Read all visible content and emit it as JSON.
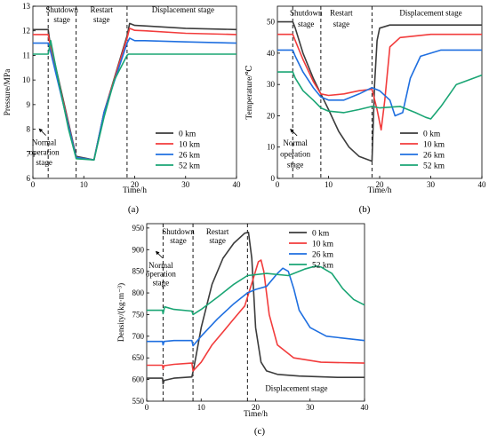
{
  "colors": {
    "0 km": "#3c3c3c",
    "10 km": "#f23c3c",
    "26 km": "#1f6fe0",
    "52 km": "#1aa574"
  },
  "chart_data": [
    {
      "type": "line",
      "panel_label": "(a)",
      "xlabel": "Time/h",
      "ylabel": "Pressure/MPa",
      "xlim": [
        0,
        40
      ],
      "ylim": [
        6,
        13
      ],
      "xticks": [
        0,
        10,
        20,
        30,
        40
      ],
      "yticks": [
        6,
        7,
        8,
        9,
        10,
        11,
        12,
        13
      ],
      "grid": false,
      "legend_position": "bottom-right",
      "vlines": [
        3,
        8.5,
        18.5
      ],
      "annotations": [
        {
          "text": "Shutdown",
          "x": 5.7,
          "y": 12.75
        },
        {
          "text": "stage",
          "x": 5.7,
          "y": 12.35
        },
        {
          "text": "Restart",
          "x": 13.5,
          "y": 12.75
        },
        {
          "text": "stage",
          "x": 13.5,
          "y": 12.35
        },
        {
          "text": "Displacement stage",
          "x": 29.5,
          "y": 12.75
        },
        {
          "text": "Normal",
          "x": 2.2,
          "y": 7.35
        },
        {
          "text": "operation",
          "x": 2.2,
          "y": 6.95
        },
        {
          "text": "stage",
          "x": 2.2,
          "y": 6.55
        }
      ],
      "series": [
        {
          "name": "0 km",
          "x": [
            0,
            3,
            3.3,
            8.5,
            12,
            14,
            18.5,
            19,
            20,
            22,
            30,
            40
          ],
          "y": [
            12.05,
            12.05,
            11.6,
            6.9,
            6.75,
            8.7,
            11.8,
            12.3,
            12.22,
            12.2,
            12.1,
            12.05
          ]
        },
        {
          "name": "10 km",
          "x": [
            0,
            3,
            3.3,
            8.5,
            12,
            14,
            18.5,
            19,
            20,
            22,
            30,
            40
          ],
          "y": [
            11.85,
            11.85,
            11.5,
            6.85,
            6.75,
            8.7,
            11.7,
            12.1,
            12.02,
            12.0,
            11.9,
            11.85
          ]
        },
        {
          "name": "26 km",
          "x": [
            0,
            3,
            3.3,
            8.5,
            12,
            14,
            18.5,
            19,
            20,
            22,
            30,
            40
          ],
          "y": [
            11.5,
            11.5,
            11.3,
            6.85,
            6.75,
            8.7,
            11.5,
            11.7,
            11.6,
            11.6,
            11.55,
            11.5
          ]
        },
        {
          "name": "52 km",
          "x": [
            0,
            3,
            3.5,
            5,
            7,
            8.5,
            12,
            14,
            16,
            18.5,
            18.8,
            40
          ],
          "y": [
            11.05,
            11.05,
            11.6,
            10.0,
            8.0,
            6.8,
            6.75,
            8.5,
            10.0,
            11.0,
            11.05,
            11.05
          ]
        }
      ]
    },
    {
      "type": "line",
      "panel_label": "(b)",
      "xlabel": "Time/h",
      "ylabel": "Temperature/℃",
      "xlim": [
        0,
        40
      ],
      "ylim": [
        0,
        55
      ],
      "xticks": [
        0,
        10,
        20,
        30,
        40
      ],
      "yticks": [
        0,
        10,
        20,
        30,
        40,
        50
      ],
      "grid": false,
      "legend_position": "bottom-right",
      "vlines": [
        3,
        8.5,
        18.5
      ],
      "annotations": [
        {
          "text": "Shutdown",
          "x": 5.6,
          "y": 52
        },
        {
          "text": "stage",
          "x": 5.6,
          "y": 48.5
        },
        {
          "text": "Restart",
          "x": 12.5,
          "y": 52
        },
        {
          "text": "stage",
          "x": 12.5,
          "y": 48.5
        },
        {
          "text": "Displacement stage",
          "x": 30,
          "y": 52
        },
        {
          "text": "Normal",
          "x": 3.5,
          "y": 10.5
        },
        {
          "text": "operation",
          "x": 3.5,
          "y": 7
        },
        {
          "text": "stage",
          "x": 3.5,
          "y": 3.5
        }
      ],
      "series": [
        {
          "name": "0 km",
          "x": [
            0,
            3,
            3.5,
            5,
            7,
            8.5,
            10,
            12,
            14,
            16,
            18.5,
            19,
            19.5,
            20,
            22,
            30,
            40
          ],
          "y": [
            50,
            50,
            48,
            40,
            32,
            27,
            22,
            15,
            10,
            7,
            5.5,
            30,
            44,
            48,
            49,
            49,
            49
          ]
        },
        {
          "name": "10 km",
          "x": [
            0,
            3,
            3.5,
            5,
            7,
            8.5,
            10,
            13,
            16,
            18.5,
            19.5,
            20.3,
            21,
            22,
            24,
            30,
            40
          ],
          "y": [
            46,
            46,
            44,
            38,
            31,
            27,
            26.5,
            27,
            28,
            28.5,
            22,
            15.5,
            25,
            42,
            45,
            46,
            46
          ]
        },
        {
          "name": "26 km",
          "x": [
            0,
            3,
            3.5,
            5,
            7,
            8.5,
            10,
            13,
            16,
            18.5,
            20,
            22,
            23,
            24.5,
            26,
            28,
            32,
            40
          ],
          "y": [
            41,
            41,
            39,
            34,
            29,
            26,
            25,
            25,
            27,
            29,
            28,
            25,
            20,
            21,
            32,
            39,
            41,
            41
          ]
        },
        {
          "name": "52 km",
          "x": [
            0,
            3,
            3.5,
            5,
            7,
            8.5,
            10,
            13,
            16,
            18.5,
            20,
            24,
            27,
            29,
            30,
            32,
            35,
            40
          ],
          "y": [
            34,
            34,
            32,
            28,
            25,
            22.5,
            21.5,
            21,
            22,
            23,
            22.5,
            23,
            21,
            19.5,
            19,
            23,
            30,
            33
          ]
        }
      ]
    },
    {
      "type": "line",
      "panel_label": "(c)",
      "xlabel": "Time/h",
      "ylabel": "Density/(kg·m⁻³)",
      "xlim": [
        0,
        40
      ],
      "ylim": [
        550,
        960
      ],
      "xticks": [
        0,
        10,
        20,
        30,
        40
      ],
      "yticks": [
        550,
        600,
        650,
        700,
        750,
        800,
        850,
        900,
        950
      ],
      "grid": false,
      "legend_position": "top-right",
      "vlines": [
        3,
        8.5,
        18.5
      ],
      "annotations": [
        {
          "text": "Shutdown",
          "x": 5.8,
          "y": 935
        },
        {
          "text": "stage",
          "x": 5.8,
          "y": 915
        },
        {
          "text": "Restart",
          "x": 13,
          "y": 935
        },
        {
          "text": "stage",
          "x": 13,
          "y": 915
        },
        {
          "text": "Normal",
          "x": 2.6,
          "y": 858
        },
        {
          "text": "operation",
          "x": 2.6,
          "y": 838
        },
        {
          "text": "stage",
          "x": 2.6,
          "y": 818
        },
        {
          "text": "Displacement stage",
          "x": 27.5,
          "y": 574
        }
      ],
      "series": [
        {
          "name": "0 km",
          "x": [
            0,
            2.9,
            3,
            3.2,
            5,
            8.3,
            8.5,
            9,
            10,
            12,
            14,
            16,
            18,
            18.7,
            19.3,
            20,
            21,
            22,
            24,
            28,
            35,
            40
          ],
          "y": [
            603,
            603,
            590,
            598,
            603,
            606,
            618,
            650,
            720,
            820,
            880,
            915,
            938,
            940,
            880,
            720,
            640,
            620,
            612,
            608,
            605,
            605
          ]
        },
        {
          "name": "10 km",
          "x": [
            0,
            2.9,
            3,
            3.2,
            5,
            8.3,
            8.5,
            10,
            12,
            14,
            16,
            18,
            19.5,
            20.5,
            21,
            21.5,
            22.5,
            24,
            27,
            32,
            40
          ],
          "y": [
            633,
            633,
            625,
            632,
            635,
            638,
            620,
            640,
            680,
            710,
            740,
            770,
            830,
            872,
            876,
            850,
            750,
            680,
            650,
            640,
            638
          ]
        },
        {
          "name": "26 km",
          "x": [
            0,
            2.9,
            3,
            3.2,
            5,
            8.3,
            8.5,
            10,
            13,
            16,
            18.5,
            20,
            22,
            24,
            25,
            26,
            27,
            28,
            30,
            33,
            40
          ],
          "y": [
            688,
            688,
            680,
            688,
            690,
            690,
            678,
            700,
            740,
            775,
            800,
            808,
            815,
            845,
            857,
            850,
            810,
            760,
            720,
            700,
            690
          ]
        },
        {
          "name": "52 km",
          "x": [
            0,
            2.9,
            3,
            3.3,
            5,
            8.3,
            8.5,
            10,
            13,
            16,
            18.5,
            22,
            26,
            29,
            31,
            32,
            34,
            36,
            38,
            40
          ],
          "y": [
            760,
            760,
            752,
            768,
            762,
            758,
            750,
            762,
            790,
            820,
            840,
            845,
            840,
            855,
            862,
            860,
            845,
            810,
            785,
            772
          ]
        }
      ]
    }
  ]
}
